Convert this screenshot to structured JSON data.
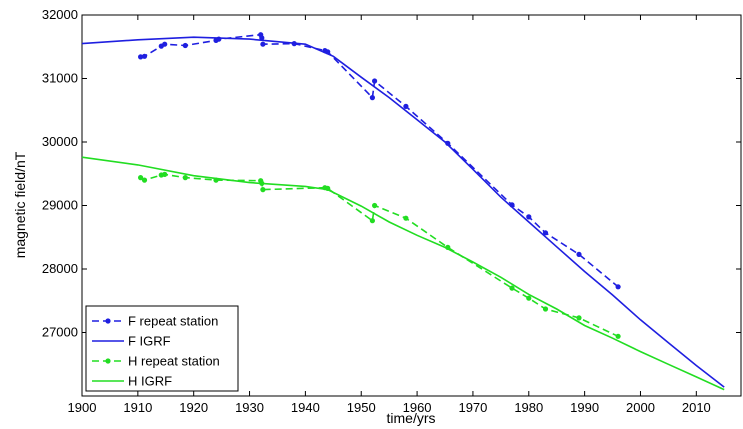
{
  "chart_data": {
    "type": "line",
    "title": "",
    "xlabel": "time/yrs",
    "ylabel": "magnetic field/nT",
    "xlim": [
      1900,
      2018
    ],
    "ylim": [
      26000,
      32000
    ],
    "xticks": [
      1900,
      1910,
      1920,
      1930,
      1940,
      1950,
      1960,
      1970,
      1980,
      1990,
      2000,
      2010
    ],
    "yticks": [
      27000,
      28000,
      29000,
      30000,
      31000,
      32000
    ],
    "grid": false,
    "legend_position": "bottom-left",
    "series": [
      {
        "name": "F repeat station",
        "color": "#1f1fe0",
        "style": "dashed",
        "marker": "point",
        "x": [
          1910.5,
          1911.2,
          1914.2,
          1914.8,
          1918.5,
          1924.0,
          1924.5,
          1932.0,
          1932.2,
          1932.4,
          1938.0,
          1943.5,
          1944.0,
          1952.0,
          1952.4,
          1958.0,
          1965.5,
          1977.0,
          1980.0,
          1983.0,
          1989.0,
          1996.0
        ],
        "y": [
          31340,
          31350,
          31510,
          31540,
          31520,
          31600,
          31620,
          31690,
          31640,
          31540,
          31550,
          31440,
          31420,
          30700,
          30960,
          30560,
          29980,
          29010,
          28820,
          28570,
          28230,
          27720
        ]
      },
      {
        "name": "F IGRF",
        "color": "#1f1fe0",
        "style": "solid",
        "marker": "none",
        "x": [
          1900,
          1910,
          1920,
          1930,
          1940,
          1945,
          1950,
          1955,
          1960,
          1965,
          1970,
          1975,
          1980,
          1985,
          1990,
          1995,
          2000,
          2005,
          2010,
          2015
        ],
        "y": [
          31550,
          31610,
          31650,
          31620,
          31540,
          31350,
          31020,
          30700,
          30350,
          30000,
          29570,
          29130,
          28740,
          28350,
          27960,
          27590,
          27200,
          26840,
          26480,
          26140
        ]
      },
      {
        "name": "H repeat station",
        "color": "#22dd22",
        "style": "dashed",
        "marker": "point",
        "x": [
          1910.5,
          1911.2,
          1914.2,
          1914.8,
          1918.5,
          1924.0,
          1932.0,
          1932.2,
          1932.4,
          1943.5,
          1944.0,
          1952.0,
          1952.4,
          1958.0,
          1965.5,
          1977.0,
          1980.0,
          1983.0,
          1989.0,
          1996.0
        ],
        "y": [
          29440,
          29400,
          29480,
          29490,
          29440,
          29400,
          29390,
          29350,
          29250,
          29280,
          29270,
          28760,
          29000,
          28800,
          28340,
          27700,
          27540,
          27370,
          27230,
          26940
        ]
      },
      {
        "name": "H IGRF",
        "color": "#22dd22",
        "style": "solid",
        "marker": "none",
        "x": [
          1900,
          1910,
          1920,
          1930,
          1940,
          1944,
          1950,
          1955,
          1960,
          1965,
          1970,
          1975,
          1980,
          1985,
          1990,
          1995,
          2000,
          2005,
          2010,
          2015
        ],
        "y": [
          29760,
          29640,
          29470,
          29360,
          29300,
          29250,
          28990,
          28740,
          28530,
          28340,
          28110,
          27870,
          27600,
          27370,
          27110,
          26910,
          26700,
          26500,
          26300,
          26100
        ]
      }
    ]
  }
}
